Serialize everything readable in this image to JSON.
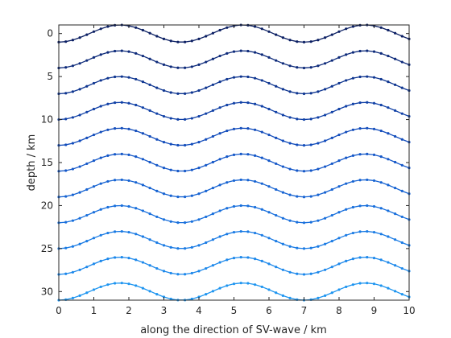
{
  "chart_data": {
    "type": "line",
    "xlabel": "along the direction of SV-wave / km",
    "ylabel": "depth / km",
    "xlim": [
      0,
      10
    ],
    "ylim": [
      31,
      -1
    ],
    "y_axis_reversed": true,
    "grid": false,
    "legend": "none",
    "xticks": [
      0,
      1,
      2,
      3,
      4,
      5,
      6,
      7,
      8,
      9,
      10
    ],
    "yticks": [
      0,
      5,
      10,
      15,
      20,
      25,
      30
    ],
    "x_step": 0.2,
    "wave": {
      "amplitude": 1.0,
      "wavelength": 3.5,
      "crest_x": 1.75,
      "form": "depth = base_depth - amplitude * sin(2*pi*(x - 0.875)/3.5)"
    },
    "series": [
      {
        "base_depth": 0,
        "color": "#0b1f63"
      },
      {
        "base_depth": 3,
        "color": "#0d2a7a"
      },
      {
        "base_depth": 6,
        "color": "#0e3590"
      },
      {
        "base_depth": 9,
        "color": "#1040a6"
      },
      {
        "base_depth": 12,
        "color": "#124cbb"
      },
      {
        "base_depth": 15,
        "color": "#1457c8"
      },
      {
        "base_depth": 18,
        "color": "#1663d2"
      },
      {
        "base_depth": 21,
        "color": "#186fdc"
      },
      {
        "base_depth": 24,
        "color": "#1a7be4"
      },
      {
        "base_depth": 27,
        "color": "#1c88eb"
      },
      {
        "base_depth": 30,
        "color": "#1e95f0"
      }
    ]
  }
}
